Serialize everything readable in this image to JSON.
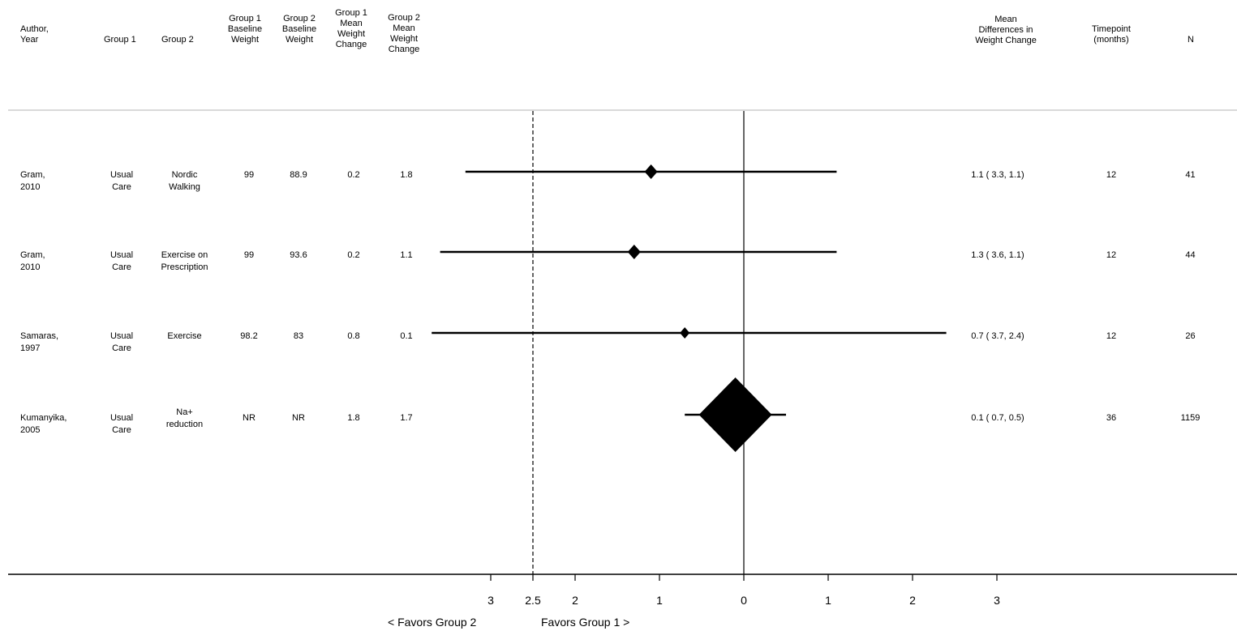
{
  "columns": {
    "author": "Author,\nYear",
    "group1": "Group 1",
    "group2": "Group 2",
    "g1_baseline": "Group 1\nBaseline\nWeight",
    "g2_baseline": "Group 2\nBaseline\nWeight",
    "g1_change": "Group 1\nMean\nWeight\nChange",
    "g2_change": "Group 2\nMean\nWeight\nChange",
    "mean_diff": "Mean\nDifferences in\nWeight Change",
    "timepoint": "Timepoint\n(months)",
    "n": "N"
  },
  "rows": [
    {
      "author": "Gram,\n2010",
      "group1": "Usual\nCare",
      "group2": "Nordic\nWalking",
      "g1_baseline": "99",
      "g2_baseline": "88.9",
      "g1_change": "0.2",
      "g2_change": "1.8",
      "mean_diff": "1.1 ( 3.3, 1.1)",
      "timepoint": "12",
      "n": "41"
    },
    {
      "author": "Gram,\n2010",
      "group1": "Usual\nCare",
      "group2": "Exercise on\nPrescription",
      "g1_baseline": "99",
      "g2_baseline": "93.6",
      "g1_change": "0.2",
      "g2_change": "1.1",
      "mean_diff": "1.3 ( 3.6, 1.1)",
      "timepoint": "12",
      "n": "44"
    },
    {
      "author": "Samaras,\n1997",
      "group1": "Usual\nCare",
      "group2": "Exercise",
      "g1_baseline": "98.2",
      "g2_baseline": "83",
      "g1_change": "0.8",
      "g2_change": "0.1",
      "mean_diff": "0.7 ( 3.7, 2.4)",
      "timepoint": "12",
      "n": "26"
    },
    {
      "author": "Kumanyika,\n2005",
      "group1": "Usual\nCare",
      "group2": "Na+\nreduction",
      "g1_baseline": "NR",
      "g2_baseline": "NR",
      "g1_change": "1.8",
      "g2_change": "1.7",
      "mean_diff": "0.1 ( 0.7, 0.5)",
      "timepoint": "36",
      "n": "1159"
    }
  ],
  "favors": {
    "left": "< Favors Group 2",
    "right": "Favors Group 1 >"
  },
  "chart_data": {
    "type": "forest",
    "x_tick_labels": [
      "3",
      "2.5",
      "2",
      "1",
      "0",
      "1",
      "2",
      "3"
    ],
    "x_tick_values": [
      -3,
      -2.5,
      -2,
      -1,
      0,
      1,
      2,
      3
    ],
    "reference_line": 0,
    "dashed_line": -2.5,
    "xlim": [
      -3.5,
      3.5
    ],
    "estimates": [
      {
        "point": -1.1,
        "lower": -3.3,
        "upper": 1.1,
        "weight": "small"
      },
      {
        "point": -1.3,
        "lower": -3.6,
        "upper": 1.1,
        "weight": "small"
      },
      {
        "point": -0.7,
        "lower": -3.7,
        "upper": 2.4,
        "weight": "small"
      },
      {
        "point": -0.1,
        "lower": -0.7,
        "upper": 0.5,
        "weight": "large"
      }
    ],
    "colors": {
      "marks": "#000000",
      "separator": "#d9d9d9"
    }
  }
}
